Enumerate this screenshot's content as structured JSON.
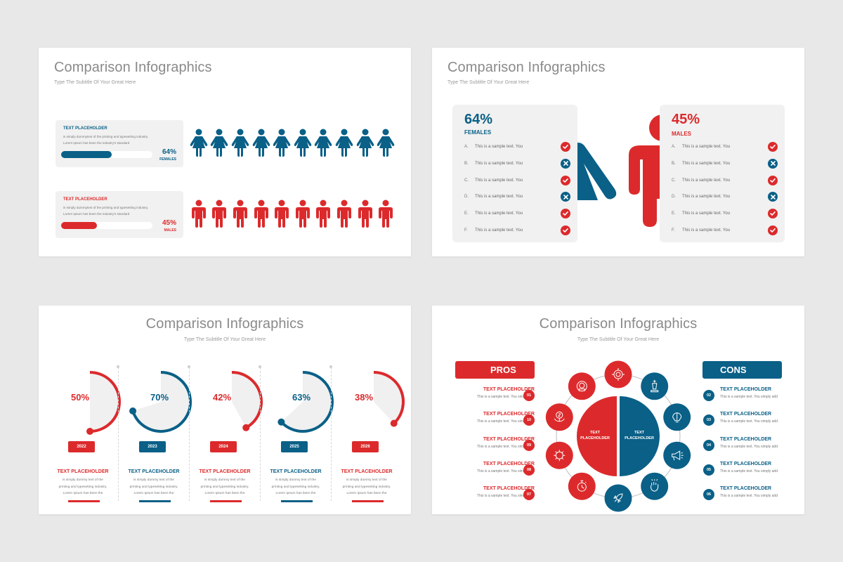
{
  "colors": {
    "red": "#dc2a2c",
    "blue": "#0a6087",
    "card_bg": "#f1f1f1",
    "page_bg": "#e9e8e9"
  },
  "slides": [
    {
      "title": "Comparison Infographics",
      "subtitle": "Type The Subtitle Of Your Great Here",
      "cards": [
        {
          "heading": "TEXT PLACEHOLDER",
          "desc_line1": " is simply dummytext of the printing and typesetting industry.",
          "desc_line2": "Lorem Ipsum has been the industry's standard",
          "percent": "64%",
          "label": "FEMALES",
          "value": 64,
          "color": "blue",
          "icon": "female-person-icon",
          "icon_count": 10
        },
        {
          "heading": "TEXT PLACEHOLDER",
          "desc_line1": " is simply dummytext of the printing and typesetting industry.",
          "desc_line2": "Lorem Ipsum has been the industry's standard",
          "percent": "45%",
          "label": "MALES",
          "value": 45,
          "color": "red",
          "icon": "male-person-icon",
          "icon_count": 10
        }
      ]
    },
    {
      "title": "Comparison Infographics",
      "subtitle": "Type The Subtitle Of Your Great Here",
      "panels": [
        {
          "percent": "64%",
          "label": "FEMALES",
          "color": "blue",
          "rows": [
            {
              "letter": "A.",
              "text": "This is a sample text. You",
              "status": "check"
            },
            {
              "letter": "B.",
              "text": "This is a sample text. You",
              "status": "cross"
            },
            {
              "letter": "C.",
              "text": "This is a sample text. You",
              "status": "check"
            },
            {
              "letter": "D.",
              "text": "This is a sample text. You",
              "status": "cross"
            },
            {
              "letter": "E.",
              "text": "This is a sample text. You",
              "status": "check"
            },
            {
              "letter": "F.",
              "text": "This is a sample text. You",
              "status": "check"
            }
          ]
        },
        {
          "percent": "45%",
          "label": "MALES",
          "color": "red",
          "rows": [
            {
              "letter": "A.",
              "text": "This is a sample text. You",
              "status": "check"
            },
            {
              "letter": "B.",
              "text": "This is a sample text. You",
              "status": "cross"
            },
            {
              "letter": "C.",
              "text": "This is a sample text. You",
              "status": "check"
            },
            {
              "letter": "D.",
              "text": "This is a sample text. You",
              "status": "cross"
            },
            {
              "letter": "E.",
              "text": "This is a sample text. You",
              "status": "check"
            },
            {
              "letter": "F.",
              "text": "This is a sample text. You",
              "status": "check"
            }
          ]
        }
      ]
    },
    {
      "title": "Comparison Infographics",
      "subtitle": "Type The Subtitle Of Your Great Here",
      "gauges": [
        {
          "percent": "50%",
          "value": 50,
          "year": "2022",
          "color": "red",
          "heading": "TEXT PLACEHOLDER",
          "line1": "is simply dummy text of the",
          "line2": "printing and typesetting industry.",
          "line3": "Lorem Ipsum has been the"
        },
        {
          "percent": "70%",
          "value": 70,
          "year": "2023",
          "color": "blue",
          "heading": "TEXT PLACEHOLDER",
          "line1": "is simply dummy text of the",
          "line2": "printing and typesetting industry.",
          "line3": "Lorem Ipsum has been the"
        },
        {
          "percent": "42%",
          "value": 42,
          "year": "2024",
          "color": "red",
          "heading": "TEXT PLACEHOLDER",
          "line1": "is simply dummy text of the",
          "line2": "printing and typesetting industry.",
          "line3": "Lorem Ipsum has been the"
        },
        {
          "percent": "63%",
          "value": 63,
          "year": "2025",
          "color": "blue",
          "heading": "TEXT PLACEHOLDER",
          "line1": "is simply dummy text of the",
          "line2": "printing and typesetting industry.",
          "line3": "Lorem Ipsum has been the"
        },
        {
          "percent": "38%",
          "value": 38,
          "year": "2026",
          "color": "red",
          "heading": "TEXT PLACEHOLDER",
          "line1": "is simply dummy text of the",
          "line2": "printing and typesetting industry.",
          "line3": "Lorem Ipsum has been the"
        }
      ]
    },
    {
      "title": "Comparison Infographics",
      "subtitle": "Type The Subtitle Of Your Great Here",
      "pros": {
        "label": "PROS",
        "items": [
          {
            "num": "01",
            "heading": "TEXT PLACEHOLDER",
            "desc": "This is a sample text. You simply add"
          },
          {
            "num": "10",
            "heading": "TEXT PLACEHOLDER",
            "desc": "This is a sample text. You simply add"
          },
          {
            "num": "09",
            "heading": "TEXT PLACEHOLDER",
            "desc": "This is a sample text. You simply add"
          },
          {
            "num": "08",
            "heading": "TEXT PLACEHOLDER",
            "desc": "This is a sample text. You simply add"
          },
          {
            "num": "07",
            "heading": "TEXT PLACEHOLDER",
            "desc": "This is a sample text. You simply add"
          }
        ]
      },
      "cons": {
        "label": "CONS",
        "items": [
          {
            "num": "02",
            "heading": "TEXT PLACEHOLDER",
            "desc": "This is a sample text. You simply add"
          },
          {
            "num": "03",
            "heading": "TEXT PLACEHOLDER",
            "desc": "This is a sample text. You simply add"
          },
          {
            "num": "04",
            "heading": "TEXT PLACEHOLDER",
            "desc": "This is a sample text. You simply add"
          },
          {
            "num": "05",
            "heading": "TEXT PLACEHOLDER",
            "desc": "This is a sample text. You simply add"
          },
          {
            "num": "06",
            "heading": "TEXT PLACEHOLDER",
            "desc": "This is a sample text. You simply add"
          }
        ]
      },
      "center_left": {
        "line1": "TEXT",
        "line2": "PLACEHOLDER"
      },
      "center_right": {
        "line1": "TEXT",
        "line2": "PLACEHOLDER"
      },
      "ring_icons": [
        {
          "name": "target-icon",
          "color": "red"
        },
        {
          "name": "chess-king-icon",
          "color": "blue"
        },
        {
          "name": "brain-bulb-icon",
          "color": "blue"
        },
        {
          "name": "megaphone-icon",
          "color": "blue"
        },
        {
          "name": "idea-hand-icon",
          "color": "blue"
        },
        {
          "name": "rocket-icon",
          "color": "blue"
        },
        {
          "name": "stopwatch-icon",
          "color": "red"
        },
        {
          "name": "gear-brain-icon",
          "color": "red"
        },
        {
          "name": "money-plant-icon",
          "color": "red"
        },
        {
          "name": "money-head-icon",
          "color": "red"
        }
      ]
    }
  ]
}
